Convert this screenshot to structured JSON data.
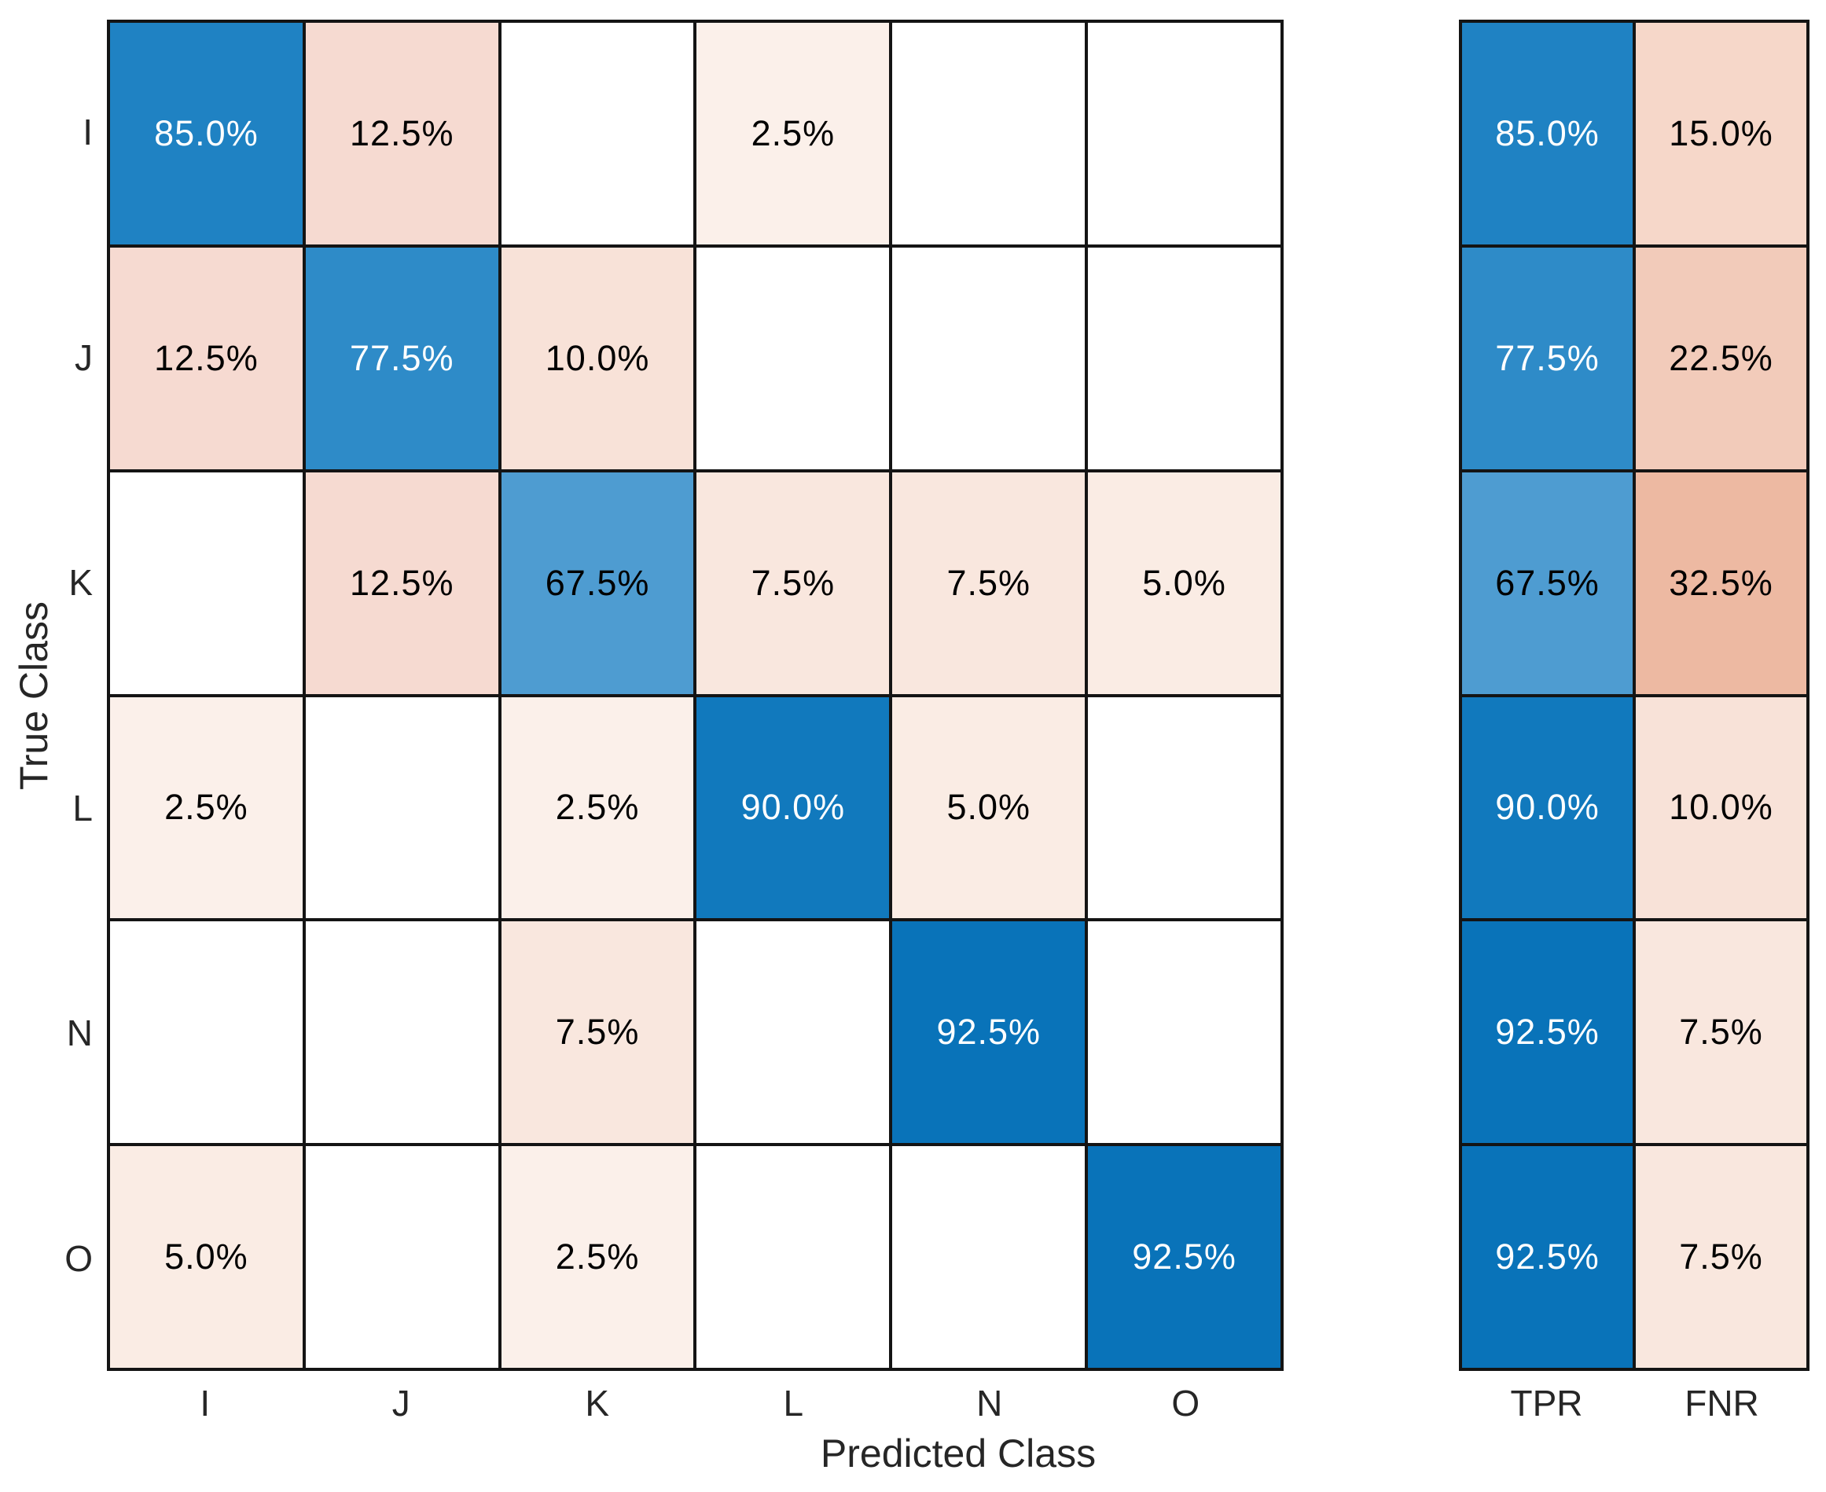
{
  "figure": {
    "xlabel": "Predicted Class",
    "ylabel": "True Class"
  },
  "chart_data": {
    "type": "heatmap",
    "subtype": "confusion-matrix-with-column-summary",
    "normalization": "row-percentage",
    "classes": [
      "I",
      "J",
      "K",
      "L",
      "N",
      "O"
    ],
    "x_tick_labels": [
      "I",
      "J",
      "K",
      "L",
      "N",
      "O"
    ],
    "y_tick_labels": [
      "I",
      "J",
      "K",
      "L",
      "N",
      "O"
    ],
    "summary_headers": [
      "TPR",
      "FNR"
    ],
    "matrix_percent": [
      [
        85.0,
        12.5,
        null,
        2.5,
        null,
        null
      ],
      [
        12.5,
        77.5,
        10.0,
        null,
        null,
        null
      ],
      [
        null,
        12.5,
        67.5,
        7.5,
        7.5,
        5.0
      ],
      [
        2.5,
        null,
        2.5,
        90.0,
        5.0,
        null
      ],
      [
        null,
        null,
        7.5,
        null,
        92.5,
        null
      ],
      [
        5.0,
        null,
        2.5,
        null,
        null,
        92.5
      ]
    ],
    "tpr_percent": [
      85.0,
      77.5,
      67.5,
      90.0,
      92.5,
      92.5
    ],
    "fnr_percent": [
      15.0,
      22.5,
      32.5,
      10.0,
      7.5,
      7.5
    ],
    "value_format": "one-decimal-percent",
    "colors": {
      "diagonal_base": "#0072BD",
      "offdiagonal_base": "#D95319",
      "grid_line": "#141414",
      "empty_fill": "#FFFFFF",
      "tick_text": "#262626",
      "cell_text_dark": "#000000",
      "cell_text_light": "#FFFFFF",
      "white_text_min_percent": 75,
      "diagonal_fill": {
        "67.5": "#4E9CD1",
        "77.5": "#2E8BC8",
        "85.0": "#1F82C3",
        "90.0": "#1179BD",
        "92.5": "#0973B9"
      },
      "offdiagonal_fill": {
        "2.5": "#FBF0EA",
        "5.0": "#FAECE4",
        "7.5": "#F9E7DE",
        "10.0": "#F8E2D8",
        "12.5": "#F6DAD1",
        "15.0": "#F6D7C9",
        "22.5": "#F2CBBA",
        "32.5": "#EDB9A2"
      }
    }
  }
}
